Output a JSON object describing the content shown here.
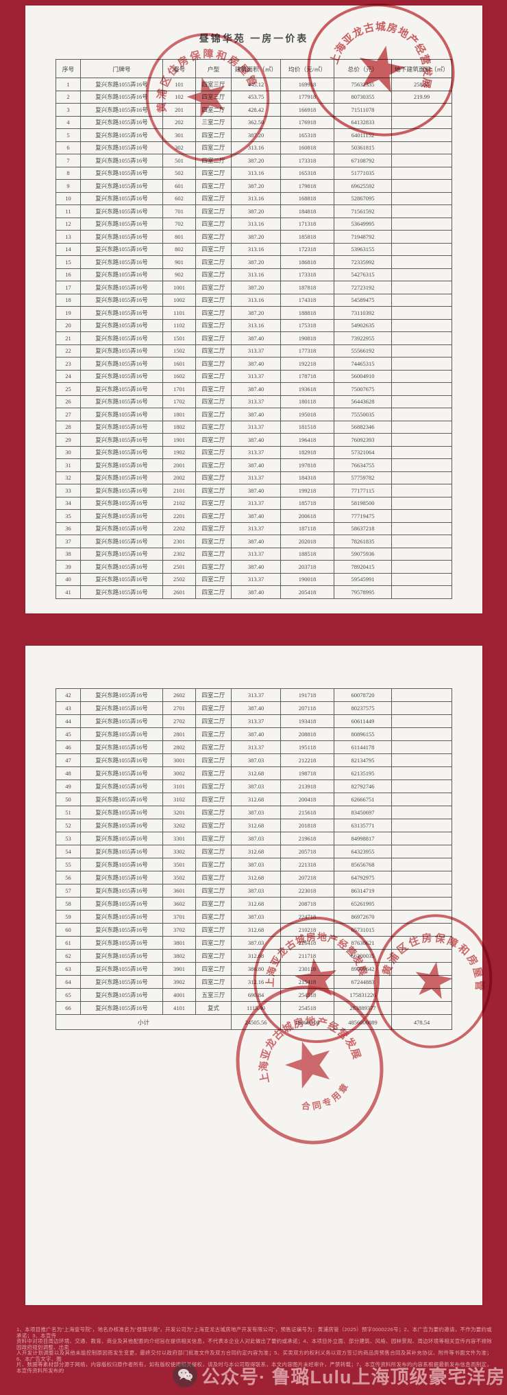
{
  "title": "昼锦华苑  一房一价表",
  "headers": [
    "序号",
    "门牌号",
    "室号",
    "户型",
    "建筑面积（㎡）",
    "均价（元/㎡）",
    "总价（元）",
    "地下建筑面积（㎡）"
  ],
  "page1_rows": [
    [
      "1",
      "复兴东路1055弄16号",
      "101",
      "四室三厅",
      "445.12",
      "169918",
      "75632335",
      "258.55"
    ],
    [
      "2",
      "复兴东路1055弄16号",
      "102",
      "四室三厅",
      "453.75",
      "177918",
      "80730355",
      "219.99"
    ],
    [
      "3",
      "复兴东路1055弄16号",
      "201",
      "四室二厅",
      "428.42",
      "166918",
      "71511078",
      ""
    ],
    [
      "4",
      "复兴东路1055弄16号",
      "202",
      "三室二厅",
      "362.50",
      "176918",
      "64132833",
      ""
    ],
    [
      "5",
      "复兴东路1055弄16号",
      "301",
      "四室二厅",
      "387.20",
      "165318",
      "64011152",
      ""
    ],
    [
      "6",
      "复兴东路1055弄16号",
      "302",
      "四室二厅",
      "313.16",
      "160818",
      "50361815",
      ""
    ],
    [
      "7",
      "复兴东路1055弄16号",
      "501",
      "四室二厅",
      "387.20",
      "173318",
      "67108792",
      ""
    ],
    [
      "8",
      "复兴东路1055弄16号",
      "502",
      "四室二厅",
      "313.16",
      "165318",
      "51771035",
      ""
    ],
    [
      "9",
      "复兴东路1055弄16号",
      "601",
      "四室二厅",
      "387.20",
      "179818",
      "69625592",
      ""
    ],
    [
      "10",
      "复兴东路1055弄16号",
      "602",
      "四室二厅",
      "313.16",
      "168818",
      "52867095",
      ""
    ],
    [
      "11",
      "复兴东路1055弄16号",
      "701",
      "四室二厅",
      "387.20",
      "184818",
      "71561592",
      ""
    ],
    [
      "12",
      "复兴东路1055弄16号",
      "702",
      "四室二厅",
      "313.16",
      "171318",
      "53649995",
      ""
    ],
    [
      "13",
      "复兴东路1055弄16号",
      "801",
      "四室二厅",
      "387.20",
      "185818",
      "71948792",
      ""
    ],
    [
      "14",
      "复兴东路1055弄16号",
      "802",
      "四室二厅",
      "313.16",
      "172318",
      "53963155",
      ""
    ],
    [
      "15",
      "复兴东路1055弄16号",
      "901",
      "四室二厅",
      "387.20",
      "186818",
      "72335992",
      ""
    ],
    [
      "16",
      "复兴东路1055弄16号",
      "902",
      "四室二厅",
      "313.16",
      "173318",
      "54276315",
      ""
    ],
    [
      "17",
      "复兴东路1055弄16号",
      "1001",
      "四室二厅",
      "387.20",
      "187818",
      "72723192",
      ""
    ],
    [
      "18",
      "复兴东路1055弄16号",
      "1002",
      "四室二厅",
      "313.16",
      "174318",
      "54589475",
      ""
    ],
    [
      "19",
      "复兴东路1055弄16号",
      "1101",
      "四室二厅",
      "387.20",
      "188818",
      "73110392",
      ""
    ],
    [
      "20",
      "复兴东路1055弄16号",
      "1102",
      "四室二厅",
      "313.16",
      "175318",
      "54902635",
      ""
    ],
    [
      "21",
      "复兴东路1055弄16号",
      "1501",
      "四室二厅",
      "387.40",
      "190818",
      "73922955",
      ""
    ],
    [
      "22",
      "复兴东路1055弄16号",
      "1502",
      "四室二厅",
      "313.37",
      "177318",
      "55566192",
      ""
    ],
    [
      "23",
      "复兴东路1055弄16号",
      "1601",
      "四室二厅",
      "387.40",
      "192218",
      "74465315",
      ""
    ],
    [
      "24",
      "复兴东路1055弄16号",
      "1602",
      "四室二厅",
      "313.37",
      "178718",
      "56004910",
      ""
    ],
    [
      "25",
      "复兴东路1055弄16号",
      "1701",
      "四室二厅",
      "387.40",
      "193618",
      "75007675",
      ""
    ],
    [
      "26",
      "复兴东路1055弄16号",
      "1702",
      "四室二厅",
      "313.37",
      "180118",
      "56443628",
      ""
    ],
    [
      "27",
      "复兴东路1055弄16号",
      "1801",
      "四室二厅",
      "387.40",
      "195018",
      "75550035",
      ""
    ],
    [
      "28",
      "复兴东路1055弄16号",
      "1802",
      "四室二厅",
      "313.37",
      "181518",
      "56882346",
      ""
    ],
    [
      "29",
      "复兴东路1055弄16号",
      "1901",
      "四室二厅",
      "387.40",
      "196418",
      "76092393",
      ""
    ],
    [
      "30",
      "复兴东路1055弄16号",
      "1902",
      "四室二厅",
      "313.37",
      "182918",
      "57321064",
      ""
    ],
    [
      "31",
      "复兴东路1055弄16号",
      "2001",
      "四室二厅",
      "387.40",
      "197818",
      "76634755",
      ""
    ],
    [
      "32",
      "复兴东路1055弄16号",
      "2002",
      "四室二厅",
      "313.37",
      "184318",
      "57759782",
      ""
    ],
    [
      "33",
      "复兴东路1055弄16号",
      "2101",
      "四室二厅",
      "387.40",
      "199218",
      "77177115",
      ""
    ],
    [
      "34",
      "复兴东路1055弄16号",
      "2102",
      "四室二厅",
      "313.37",
      "185718",
      "58198500",
      ""
    ],
    [
      "35",
      "复兴东路1055弄16号",
      "2201",
      "四室二厅",
      "387.40",
      "200618",
      "77719475",
      ""
    ],
    [
      "36",
      "复兴东路1055弄16号",
      "2202",
      "四室二厅",
      "313.37",
      "187118",
      "58637218",
      ""
    ],
    [
      "37",
      "复兴东路1055弄16号",
      "2301",
      "四室二厅",
      "387.40",
      "202018",
      "78261835",
      ""
    ],
    [
      "38",
      "复兴东路1055弄16号",
      "2302",
      "四室二厅",
      "313.37",
      "188518",
      "59075936",
      ""
    ],
    [
      "39",
      "复兴东路1055弄16号",
      "2501",
      "四室二厅",
      "387.40",
      "203718",
      "78920415",
      ""
    ],
    [
      "40",
      "复兴东路1055弄16号",
      "2502",
      "四室二厅",
      "313.37",
      "190018",
      "59545991",
      ""
    ],
    [
      "41",
      "复兴东路1055弄16号",
      "2601",
      "四室二厅",
      "387.40",
      "205418",
      "79578995",
      ""
    ]
  ],
  "page2_rows": [
    [
      "42",
      "复兴东路1055弄16号",
      "2602",
      "四室二厅",
      "313.37",
      "191718",
      "60078720",
      ""
    ],
    [
      "43",
      "复兴东路1055弄16号",
      "2701",
      "四室二厅",
      "387.40",
      "207118",
      "80237575",
      ""
    ],
    [
      "44",
      "复兴东路1055弄16号",
      "2702",
      "四室二厅",
      "313.37",
      "193418",
      "60611449",
      ""
    ],
    [
      "45",
      "复兴东路1055弄16号",
      "2801",
      "四室二厅",
      "387.40",
      "208818",
      "80896155",
      ""
    ],
    [
      "46",
      "复兴东路1055弄16号",
      "2802",
      "四室二厅",
      "313.37",
      "195118",
      "61144178",
      ""
    ],
    [
      "47",
      "复兴东路1055弄16号",
      "3001",
      "四室二厅",
      "387.03",
      "212218",
      "82134795",
      ""
    ],
    [
      "48",
      "复兴东路1055弄16号",
      "3002",
      "四室二厅",
      "312.68",
      "198718",
      "62135195",
      ""
    ],
    [
      "49",
      "复兴东路1055弄16号",
      "3101",
      "四室二厅",
      "387.03",
      "213918",
      "82792746",
      ""
    ],
    [
      "50",
      "复兴东路1055弄16号",
      "3102",
      "四室二厅",
      "312.68",
      "200418",
      "62666751",
      ""
    ],
    [
      "51",
      "复兴东路1055弄16号",
      "3201",
      "四室二厅",
      "387.03",
      "215618",
      "83450697",
      ""
    ],
    [
      "52",
      "复兴东路1055弄16号",
      "3202",
      "四室二厅",
      "312.68",
      "201818",
      "63135771",
      ""
    ],
    [
      "53",
      "复兴东路1055弄16号",
      "3301",
      "四室二厅",
      "387.03",
      "219618",
      "84998817",
      ""
    ],
    [
      "54",
      "复兴东路1055弄16号",
      "3302",
      "四室二厅",
      "312.68",
      "205718",
      "64323955",
      ""
    ],
    [
      "55",
      "复兴东路1055弄16号",
      "3501",
      "四室二厅",
      "387.03",
      "221318",
      "85656768",
      ""
    ],
    [
      "56",
      "复兴东路1055弄16号",
      "3502",
      "四室二厅",
      "312.68",
      "207218",
      "64792975",
      ""
    ],
    [
      "57",
      "复兴东路1055弄16号",
      "3601",
      "四室二厅",
      "387.03",
      "223018",
      "86314719",
      ""
    ],
    [
      "58",
      "复兴东路1055弄16号",
      "3602",
      "四室二厅",
      "312.68",
      "208718",
      "65261995",
      ""
    ],
    [
      "59",
      "复兴东路1055弄16号",
      "3701",
      "四室二厅",
      "387.03",
      "224718",
      "86972670",
      ""
    ],
    [
      "60",
      "复兴东路1055弄16号",
      "3702",
      "四室二厅",
      "312.68",
      "210218",
      "65731015",
      ""
    ],
    [
      "61",
      "复兴东路1055弄16号",
      "3801",
      "四室二厅",
      "387.03",
      "226418",
      "87630621",
      ""
    ],
    [
      "62",
      "复兴东路1055弄16号",
      "3802",
      "四室二厅",
      "312.68",
      "211718",
      "66200035",
      ""
    ],
    [
      "63",
      "复兴东路1055弄16号",
      "3901",
      "四室二厅",
      "386.80",
      "230118",
      "89009642",
      ""
    ],
    [
      "64",
      "复兴东路1055弄16号",
      "3902",
      "四室二厅",
      "312.16",
      "215418",
      "67244883",
      ""
    ],
    [
      "65",
      "复兴东路1055弄16号",
      "4001",
      "五室三厅",
      "690.84",
      "254518",
      "175831226",
      ""
    ],
    [
      "66",
      "复兴东路1055弄16号",
      "4101",
      "复式",
      "1115.40",
      "254518",
      "283889377",
      ""
    ]
  ],
  "subtotal": {
    "label": "小计",
    "area": "24505.56",
    "avg_price": "198600.00",
    "total_price": "4856000889",
    "basement_area": "478.54"
  },
  "stamps": {
    "company_seal": "上海亚龙古城房地产经营发展有限公司",
    "bureau_seal": "黄浦区住房保障和房屋管理局"
  },
  "footer": {
    "lines": [
      "1、本项目推广名为“上海壹号院”，地名办核准名为“昼锦华苑”，开发公司为“上海亚龙古城房地产开发有限公司”，预售证编号为：黄浦房管（2025）预字0000226号；2、本广告为要约邀请，不作为要约或承诺；3、本宣传",
      "资料中对项目周边环境、交通、教育、商业及其他配套的介绍旨在提供相关信息，不代表本企业人对此做出了要约或承诺；4、本项目外立面、部分建筑、风格、园林景观、周边环境等相关宣传内容不排除因政府规划调整、出卖",
      "人开发计划调整以及其他未能控制原因而发生变更，最终交付以政府部门批准文件及双方合同约定内容为准；5、买卖双方的权利义务以双方签订的商品房预售合同及其补充协议、附件等书面文件为准；6、本广告文字、图",
      "片、数据等素材部分源于网络，内容版权归原作者所有，如有版权使用相关侵权，请及时与本公司取得联系，本文内容图片未经审许，严禁转载；7、本宣传资料所发布的内容系根据最新发布信息而制定，本宣传资料所发布的"
    ]
  },
  "watermark": {
    "text": "公众号· 鲁璐Lulu上海顶级豪宅洋房"
  }
}
